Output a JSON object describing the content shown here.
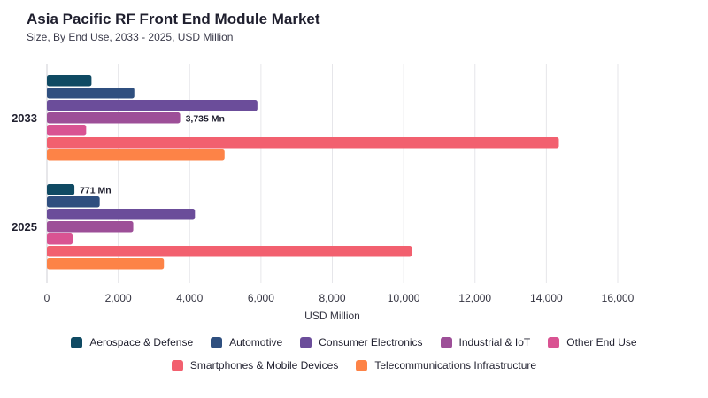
{
  "chart_data": {
    "type": "bar",
    "orientation": "horizontal",
    "title": "Asia Pacific RF Front End Module Market",
    "subtitle": "Size, By End Use, 2033 - 2025, USD Million",
    "xlabel": "USD Million",
    "ylabel": "",
    "xlim": [
      0,
      16000
    ],
    "xticks": [
      "0",
      "2,000",
      "4,000",
      "6,000",
      "8,000",
      "10,000",
      "12,000",
      "14,000",
      "16,000"
    ],
    "grid": true,
    "legend_position": "bottom",
    "categories": [
      "2033",
      "2025"
    ],
    "series": [
      {
        "name": "Aerospace & Defense",
        "color": "#0f4a63",
        "values": [
          1250,
          771
        ]
      },
      {
        "name": "Automotive",
        "color": "#2f4f7f",
        "values": [
          2450,
          1480
        ]
      },
      {
        "name": "Consumer Electronics",
        "color": "#6b4d9a",
        "values": [
          5900,
          4150
        ]
      },
      {
        "name": "Industrial & IoT",
        "color": "#9d4f98",
        "values": [
          3735,
          2420
        ]
      },
      {
        "name": "Other End Use",
        "color": "#d95392",
        "values": [
          1100,
          720
        ]
      },
      {
        "name": "Smartphones & Mobile Devices",
        "color": "#f2606f",
        "values": [
          14350,
          10230
        ]
      },
      {
        "name": "Telecommunications Infrastructure",
        "color": "#fd8347",
        "values": [
          4980,
          3280
        ]
      }
    ],
    "annotations": [
      {
        "category": "2033",
        "series": "Industrial & IoT",
        "text": "3,735 Mn"
      },
      {
        "category": "2025",
        "series": "Aerospace & Defense",
        "text": "771 Mn"
      }
    ]
  }
}
